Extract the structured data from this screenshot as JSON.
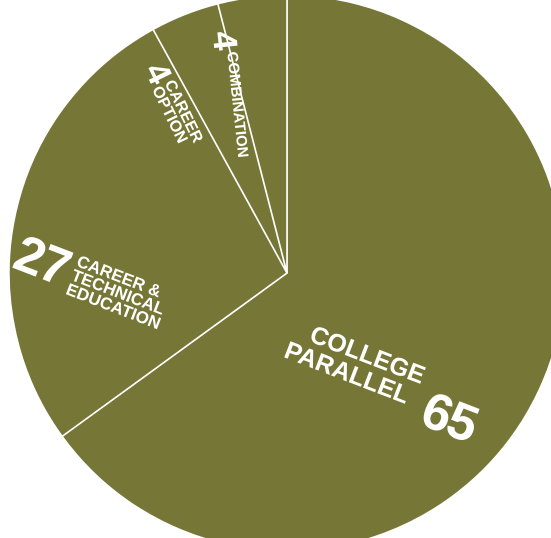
{
  "chart_data": {
    "type": "pie",
    "color": "#767636",
    "separator_color": "#ffffff",
    "slices": [
      {
        "label_lines": [
          "COLLEGE",
          "PARALLEL"
        ],
        "value": 65
      },
      {
        "label_lines": [
          "CAREER &",
          "TECHNICAL",
          "EDUCATION"
        ],
        "value": 27
      },
      {
        "label_lines": [
          "CAREER",
          "OPTION"
        ],
        "value": 4
      },
      {
        "label_lines": [
          "COMBINATION"
        ],
        "value": 4
      }
    ]
  }
}
